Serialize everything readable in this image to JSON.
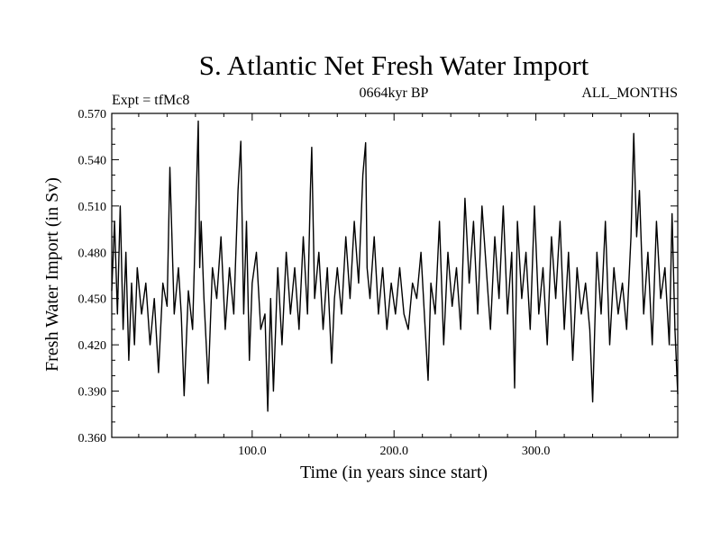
{
  "chart_data": {
    "type": "line",
    "title": "S. Atlantic Net Fresh Water Import",
    "subtitle_left": "Expt = tfMc8",
    "subtitle_center": "0664kyr BP",
    "subtitle_right": "ALL_MONTHS",
    "xlabel": "Time (in years since start)",
    "ylabel": "Fresh Water Import (in Sv)",
    "xlim": [
      1,
      400
    ],
    "ylim": [
      0.36,
      0.57
    ],
    "xticks": [
      100,
      200,
      300
    ],
    "xtick_labels": [
      "100.0",
      "200.0",
      "300.0"
    ],
    "yticks": [
      0.36,
      0.39,
      0.42,
      0.45,
      0.48,
      0.51,
      0.54,
      0.57
    ],
    "ytick_labels": [
      "0.360",
      "0.390",
      "0.420",
      "0.450",
      "0.480",
      "0.510",
      "0.540",
      "0.570"
    ],
    "grid": false,
    "line_color": "#000000",
    "series": [
      {
        "x": [
          1,
          3,
          5,
          7,
          9,
          11,
          13,
          15,
          17,
          19,
          22,
          25,
          28,
          31,
          34,
          37,
          40,
          42,
          45,
          48,
          50,
          52,
          55,
          58,
          61,
          62,
          63,
          64,
          66,
          69,
          72,
          75,
          78,
          81,
          84,
          87,
          90,
          92,
          94,
          96,
          98,
          100,
          103,
          106,
          109,
          111,
          113,
          115,
          118,
          121,
          124,
          127,
          130,
          133,
          136,
          139,
          141,
          142,
          144,
          147,
          150,
          153,
          156,
          158,
          160,
          163,
          166,
          169,
          172,
          175,
          178,
          180,
          181,
          183,
          186,
          189,
          192,
          195,
          198,
          201,
          204,
          207,
          210,
          213,
          216,
          219,
          222,
          224,
          226,
          229,
          232,
          235,
          238,
          241,
          244,
          247,
          250,
          253,
          256,
          259,
          262,
          265,
          268,
          271,
          274,
          277,
          280,
          283,
          285,
          287,
          290,
          293,
          296,
          299,
          302,
          305,
          308,
          311,
          314,
          317,
          320,
          323,
          326,
          329,
          332,
          335,
          338,
          340,
          343,
          346,
          349,
          352,
          355,
          358,
          361,
          364,
          367,
          369,
          371,
          373,
          376,
          379,
          382,
          385,
          388,
          391,
          394,
          396,
          398,
          400
        ],
        "y": [
          0.455,
          0.5,
          0.44,
          0.51,
          0.43,
          0.48,
          0.41,
          0.46,
          0.42,
          0.47,
          0.44,
          0.46,
          0.42,
          0.45,
          0.402,
          0.46,
          0.445,
          0.535,
          0.44,
          0.47,
          0.44,
          0.387,
          0.455,
          0.43,
          0.53,
          0.565,
          0.47,
          0.5,
          0.45,
          0.395,
          0.47,
          0.45,
          0.49,
          0.43,
          0.47,
          0.44,
          0.52,
          0.552,
          0.44,
          0.5,
          0.41,
          0.46,
          0.48,
          0.43,
          0.44,
          0.377,
          0.45,
          0.39,
          0.47,
          0.42,
          0.48,
          0.44,
          0.47,
          0.43,
          0.49,
          0.44,
          0.52,
          0.548,
          0.45,
          0.48,
          0.43,
          0.47,
          0.408,
          0.45,
          0.47,
          0.44,
          0.49,
          0.45,
          0.5,
          0.46,
          0.53,
          0.551,
          0.47,
          0.45,
          0.49,
          0.44,
          0.47,
          0.43,
          0.46,
          0.44,
          0.47,
          0.44,
          0.43,
          0.46,
          0.45,
          0.48,
          0.43,
          0.397,
          0.46,
          0.44,
          0.5,
          0.42,
          0.48,
          0.445,
          0.47,
          0.43,
          0.515,
          0.46,
          0.5,
          0.44,
          0.51,
          0.47,
          0.43,
          0.49,
          0.45,
          0.51,
          0.44,
          0.48,
          0.392,
          0.5,
          0.45,
          0.48,
          0.43,
          0.51,
          0.44,
          0.47,
          0.42,
          0.49,
          0.45,
          0.5,
          0.43,
          0.48,
          0.41,
          0.47,
          0.44,
          0.46,
          0.43,
          0.383,
          0.48,
          0.44,
          0.5,
          0.42,
          0.47,
          0.44,
          0.46,
          0.43,
          0.49,
          0.557,
          0.49,
          0.52,
          0.44,
          0.48,
          0.42,
          0.5,
          0.45,
          0.47,
          0.42,
          0.505,
          0.43,
          0.388
        ]
      }
    ]
  }
}
